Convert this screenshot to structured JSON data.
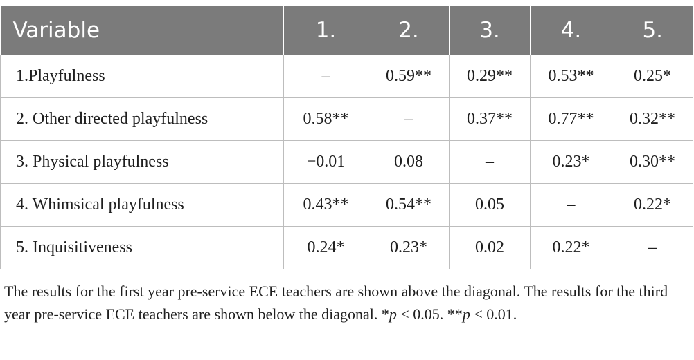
{
  "table": {
    "headers": [
      "Variable",
      "1.",
      "2.",
      "3.",
      "4.",
      "5."
    ],
    "rows": [
      {
        "label": "1.Playfulness",
        "cells": [
          "–",
          "0.59**",
          "0.29**",
          "0.53**",
          "0.25*"
        ]
      },
      {
        "label": "2. Other directed playfulness",
        "cells": [
          "0.58**",
          "–",
          "0.37**",
          "0.77**",
          "0.32**"
        ]
      },
      {
        "label": "3. Physical playfulness",
        "cells": [
          "−0.01",
          "0.08",
          "–",
          "0.23*",
          "0.30**"
        ]
      },
      {
        "label": "4. Whimsical playfulness",
        "cells": [
          "0.43**",
          "0.54**",
          "0.05",
          "–",
          "0.22*"
        ]
      },
      {
        "label": "5. Inquisitiveness",
        "cells": [
          "0.24*",
          "0.23*",
          "0.02",
          "0.22*",
          "–"
        ]
      }
    ]
  },
  "caption": {
    "main": "The results for the first year pre-service ECE teachers are shown above the diagonal. The results for the third year pre-service ECE teachers are shown below the diagonal. *",
    "p_symbol": "p",
    "sig1": " < 0.05. **",
    "sig2": " < 0.01."
  },
  "colors": {
    "header_bg": "#7b7b7b",
    "header_text": "#ffffff",
    "grid": "#bdbdbd",
    "text": "#1f1f1f"
  }
}
